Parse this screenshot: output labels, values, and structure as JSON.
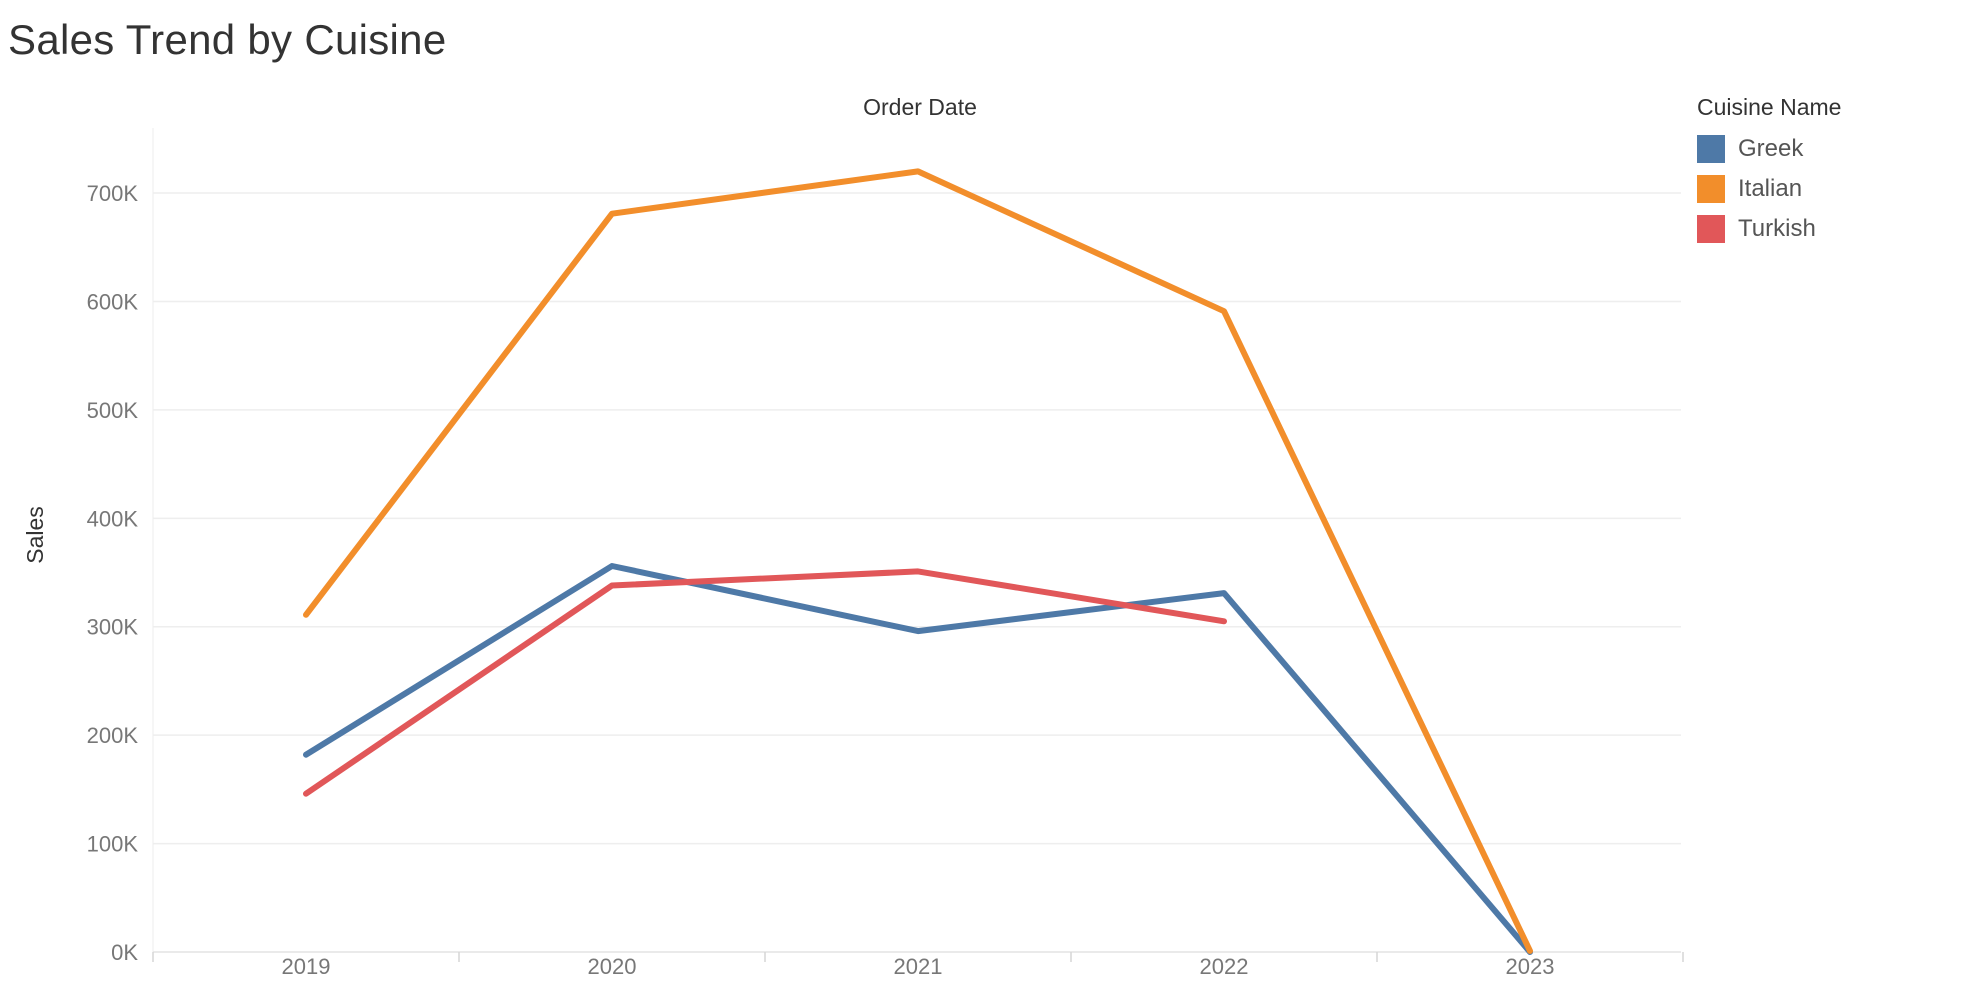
{
  "chart_data": {
    "type": "line",
    "title": "Sales Trend by Cuisine",
    "xlabel": "Order Date",
    "ylabel": "Sales",
    "categories": [
      "2019",
      "2020",
      "2021",
      "2022",
      "2023"
    ],
    "ylim": [
      0,
      760000
    ],
    "yticks": [
      0,
      100000,
      200000,
      300000,
      400000,
      500000,
      600000,
      700000
    ],
    "ytick_labels": [
      "0K",
      "100K",
      "200K",
      "300K",
      "400K",
      "500K",
      "600K",
      "700K"
    ],
    "grid": "horizontal",
    "legend_title": "Cuisine Name",
    "legend_position": "top-right",
    "series": [
      {
        "name": "Greek",
        "color": "#4e79a7",
        "values": [
          182000,
          356000,
          296000,
          331000,
          0
        ]
      },
      {
        "name": "Italian",
        "color": "#f28e2b",
        "values": [
          311000,
          681000,
          720000,
          591000,
          1000
        ]
      },
      {
        "name": "Turkish",
        "color": "#e15759",
        "values": [
          146000,
          338000,
          351000,
          305000,
          null
        ]
      }
    ]
  }
}
